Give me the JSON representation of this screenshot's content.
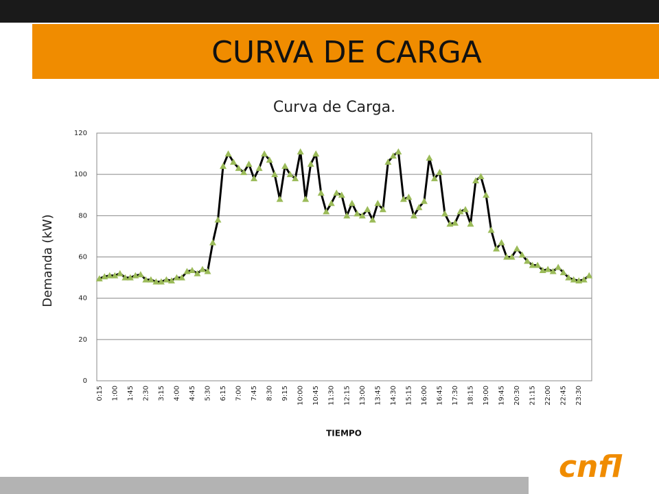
{
  "header": {
    "title": "CURVA DE CARGA"
  },
  "logo": "cnfl",
  "chart_data": {
    "type": "line",
    "title": "Curva de Carga.",
    "y_label": "Demanda (kW)",
    "x_label": "TIEMPO",
    "categories": [
      "0:15",
      null,
      null,
      "1:00",
      null,
      null,
      "1:45",
      null,
      null,
      "2:30",
      null,
      null,
      "3:15",
      null,
      null,
      "4:00",
      null,
      null,
      "4:45",
      null,
      null,
      "5:30",
      null,
      null,
      "6:15",
      null,
      null,
      "7:00",
      null,
      null,
      "7:45",
      null,
      null,
      "8:30",
      null,
      null,
      "9:15",
      null,
      null,
      "10:00",
      null,
      null,
      "10:45",
      null,
      null,
      "11:30",
      null,
      null,
      "12:15",
      null,
      null,
      "13:00",
      null,
      null,
      "13:45",
      null,
      null,
      "14:30",
      null,
      null,
      "15:15",
      null,
      null,
      "16:00",
      null,
      null,
      "16:45",
      null,
      null,
      "17:30",
      null,
      null,
      "18:15",
      null,
      null,
      "19:00",
      null,
      null,
      "19:45",
      null,
      null,
      "20:30",
      null,
      null,
      "21:15",
      null,
      null,
      "22:00",
      null,
      null,
      "22:45",
      null,
      null,
      "23:30",
      null,
      null
    ],
    "series": [
      {
        "name": "Demanda",
        "color": "#000000",
        "marker_color": "#9bbb59",
        "values": [
          49.5,
          50.5,
          51,
          51,
          52,
          50,
          50,
          51,
          51.5,
          49,
          49,
          48,
          48,
          49,
          48.5,
          50,
          50,
          53,
          53.5,
          52,
          54,
          53,
          67,
          78,
          104,
          110,
          106,
          103,
          101,
          105,
          98,
          103,
          110,
          107,
          100,
          88,
          104,
          100,
          98,
          111,
          88,
          105,
          110,
          91,
          82,
          86,
          91,
          90,
          80,
          86,
          81,
          80,
          83,
          78,
          86,
          83,
          106,
          109,
          111,
          88,
          89,
          80,
          84,
          87,
          108,
          98,
          101,
          81,
          76,
          76.5,
          82,
          83,
          76,
          97,
          99,
          90,
          73,
          64,
          67,
          60,
          60,
          64,
          61,
          58,
          56,
          56,
          53.5,
          54,
          53,
          55,
          52.5,
          50,
          49,
          48.5,
          49,
          51
        ]
      }
    ],
    "ylim": [
      0,
      120
    ],
    "yticks": [
      0,
      20,
      40,
      60,
      80,
      100,
      120
    ],
    "grid": true
  }
}
